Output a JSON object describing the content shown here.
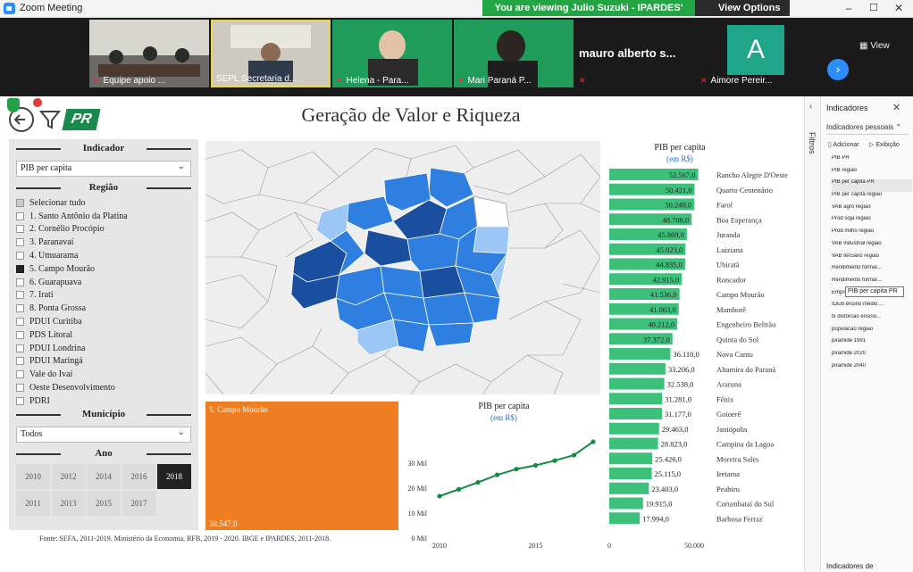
{
  "zoom": {
    "app_title": "Zoom Meeting",
    "share_banner": "You are viewing Julio Suzuki - IPARDES' screen",
    "view_options": "View Options",
    "view_label": "View",
    "participants": [
      {
        "name": "Equipe apoio ...",
        "muted": true
      },
      {
        "name": "SEPL Secretaria d...",
        "muted": false
      },
      {
        "name": "Helena - Para...",
        "muted": true
      },
      {
        "name": "Mari Paraná P...",
        "muted": true
      },
      {
        "name": "mauro alberto s...",
        "muted": true
      },
      {
        "name": "Aimore Pereir...",
        "muted": true,
        "initial": "A"
      }
    ],
    "mauro_big_name": "mauro alberto s..."
  },
  "report": {
    "title": "Geração de Valor e Riqueza",
    "logo_text": "PR",
    "indicator_header": "Indicador",
    "indicator_value": "PIB per capita",
    "region_header": "Região",
    "regions": [
      {
        "label": "Selecionar tudo",
        "state": "partial"
      },
      {
        "label": "1. Santo Antônio da Platina",
        "state": "off"
      },
      {
        "label": "2. Cornélio Procópio",
        "state": "off"
      },
      {
        "label": "3. Paranavaí",
        "state": "off"
      },
      {
        "label": "4. Umuarama",
        "state": "off"
      },
      {
        "label": "5. Campo Mourão",
        "state": "on"
      },
      {
        "label": "6. Guarapuava",
        "state": "off"
      },
      {
        "label": "7. Irati",
        "state": "off"
      },
      {
        "label": "8. Ponta Grossa",
        "state": "off"
      },
      {
        "label": "PDUI Curitiba",
        "state": "off"
      },
      {
        "label": "PDS Litoral",
        "state": "off"
      },
      {
        "label": "PDUI Londrina",
        "state": "off"
      },
      {
        "label": "PDUI Maringá",
        "state": "off"
      },
      {
        "label": "Vale do Ivaí",
        "state": "off"
      },
      {
        "label": "Oeste Desenvolvimento",
        "state": "off"
      },
      {
        "label": "PDRI",
        "state": "off"
      }
    ],
    "municipio_header": "Município",
    "municipio_value": "Todos",
    "year_header": "Ano",
    "years": [
      "2010",
      "2012",
      "2014",
      "2016",
      "2018",
      "2011",
      "2013",
      "2015",
      "2017"
    ],
    "selected_year": "2018",
    "kpi_region": "5. Campo Mourão",
    "kpi_value": "38.547,0",
    "source_note": "Fonte: SEFA, 2011-2019. Ministério da Economia, RFB, 2019 - 2020. IBGE e IPARDES, 2011-2018.",
    "colors": {
      "bar": "#3cc07a",
      "line": "#138a3e",
      "kpi": "#ef7d22",
      "map_dark": "#1a4fa0",
      "map_mid": "#2f7fe0",
      "map_light": "#9cc6f5"
    }
  },
  "chart_data": [
    {
      "type": "bar",
      "orientation": "horizontal",
      "title": "PIB per capita",
      "subtitle": "(em R$)",
      "categories": [
        "Rancho Alegre D'Oeste",
        "Quarto Centenário",
        "Farol",
        "Boa Esperança",
        "Juranda",
        "Luiziana",
        "Ubiratã",
        "Roncador",
        "Campo Mourão",
        "Mamborê",
        "Engenheiro Beltrão",
        "Quinta do Sol",
        "Nova Cantu",
        "Altamira do Paraná",
        "Araruna",
        "Fênix",
        "Goioerê",
        "Janiópolis",
        "Campina da Lagoa",
        "Moreira Sales",
        "Iretama",
        "Peabiru",
        "Corumbataí do Sul",
        "Barbosa Ferraz"
      ],
      "values": [
        52567.0,
        50421.0,
        50249.0,
        48708.0,
        45869.0,
        45023.0,
        44835.0,
        42915.0,
        41536.0,
        41063.0,
        40212.0,
        37372.0,
        36110.0,
        33206.0,
        32538.0,
        31281.0,
        31177.0,
        29463.0,
        28823.0,
        25426.0,
        25115.0,
        23403.0,
        19915.0,
        17994.0
      ],
      "labels": [
        "52.567,0",
        "50.421,0",
        "50.249,0",
        "48.708,0",
        "45.869,0",
        "45.023,0",
        "44.835,0",
        "42.915,0",
        "41.536,0",
        "41.063,0",
        "40.212,0",
        "37.372,0",
        "36.110,0",
        "33.206,0",
        "32.538,0",
        "31.281,0",
        "31.177,0",
        "29.463,0",
        "28.823,0",
        "25.426,0",
        "25.115,0",
        "23.403,0",
        "19.915,0",
        "17.994,0"
      ],
      "xlim": [
        0,
        55000
      ],
      "xticks": [
        "0",
        "50.000"
      ]
    },
    {
      "type": "line",
      "title": "PIB per capita",
      "subtitle": "(em R$)",
      "x": [
        2010,
        2011,
        2012,
        2013,
        2014,
        2015,
        2016,
        2017,
        2018
      ],
      "values": [
        16800,
        19500,
        22300,
        25300,
        27600,
        29100,
        31000,
        33200,
        38547
      ],
      "ylim": [
        0,
        40000
      ],
      "yticks": [
        "0 Mil",
        "10 Mil",
        "20 Mil",
        "30 Mil"
      ],
      "xticks": [
        "2010",
        "2015"
      ]
    }
  ],
  "indicators_pane": {
    "title": "Indicadores",
    "personal": "Indicadores pessoais",
    "add": "Adicionar",
    "show": "Exibição",
    "strip_label": "Filtros",
    "items": [
      "PIB PR",
      "PIB região",
      "PIB per capita PR",
      "PIB per capita região",
      "VAB agro região",
      "Prod soja região",
      "Prod milho região",
      "VAB industrial região",
      "VAB terciário região",
      "Rendimento formal...",
      "Rendimento formal...",
      "Emprego formal re...",
      "IDEB ensino medio ...",
      "tx distorcao ensino...",
      "populacao regiao",
      "piramide 1991",
      "piramide 2020",
      "piramide 2040"
    ],
    "tooltip": "PIB per capita PR",
    "footer": "Indicadores de"
  }
}
